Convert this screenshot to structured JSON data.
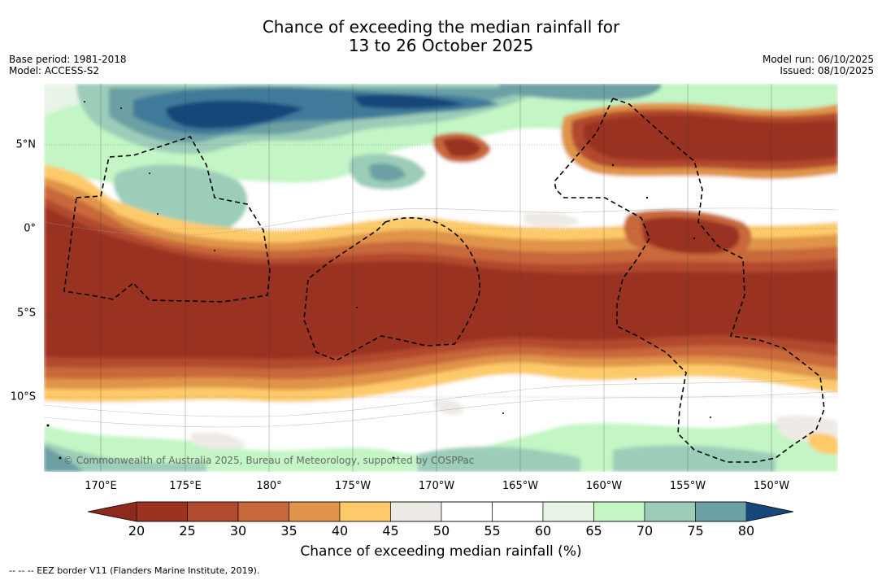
{
  "title_line1": "Chance of exceeding the median rainfall for",
  "title_line2": "13 to 26 October 2025",
  "base_period": "Base period: 1981-2018",
  "model": "Model: ACCESS-S2",
  "model_run": "Model run: 06/10/2025",
  "issued": "Issued: 08/10/2025",
  "lon_ticks": [
    "170°E",
    "175°E",
    "180°",
    "175°W",
    "170°W",
    "165°W",
    "160°W",
    "155°W",
    "150°W"
  ],
  "lat_ticks": [
    "5°N",
    "0°",
    "5°S",
    "10°S"
  ],
  "copyright": "© Commonwealth of Australia 2025, Bureau of Meteorology, supported by COSPPac",
  "colorbar": {
    "labels": [
      "20",
      "25",
      "30",
      "35",
      "40",
      "45",
      "50",
      "55",
      "60",
      "65",
      "70",
      "75",
      "80"
    ],
    "colors": [
      "#9a3322",
      "#b24a2d",
      "#c8673a",
      "#e0944a",
      "#fdca6a",
      "#eeeae6",
      "#ffffff",
      "#ffffff",
      "#e8f4e6",
      "#c3f5c5",
      "#9bcdb8",
      "#6ca0a4",
      "#407a9a"
    ],
    "under_color": "#8c2a1e",
    "over_color": "#16467a",
    "title": "Chance of exceeding median rainfall (%)"
  },
  "footnote": "--  --  -- EEZ border V11 (Flanders Marine Institute, 2019)."
}
